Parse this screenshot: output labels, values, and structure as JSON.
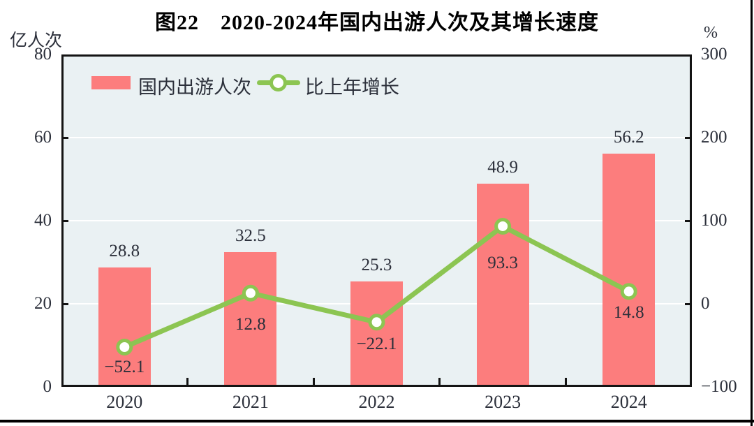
{
  "figure": {
    "title": "图22　2020-2024年国内出游人次及其增长速度",
    "left_axis": {
      "unit": "亿人次",
      "tick_values": [
        0,
        20,
        40,
        60,
        80
      ],
      "tick_labels": [
        "0",
        "20",
        "40",
        "60",
        "80"
      ]
    },
    "right_axis": {
      "unit": "%",
      "tick_values": [
        -100,
        0,
        100,
        200,
        300
      ],
      "tick_labels": [
        "−100",
        "0",
        "100",
        "200",
        "300"
      ]
    },
    "legend": [
      {
        "label": "国内出游人次",
        "swatch": "bar"
      },
      {
        "label": "比上年增长",
        "swatch": "line-marker"
      }
    ],
    "colors": {
      "bar": "#FC7D7D",
      "line": "#8CC552",
      "marker_fill": "#FFFFFF",
      "plot_background": "#EAF1F3",
      "gridline": "#FFFFFF",
      "axis_frame": "#141414",
      "text": "#2B2F3A",
      "title_text": "#000000"
    }
  },
  "chart_data": {
    "type": "combo-bar-line",
    "title": "图22　2020-2024年国内出游人次及其增长速度",
    "categories": [
      "2020",
      "2021",
      "2022",
      "2023",
      "2024"
    ],
    "series": [
      {
        "name": "国内出游人次",
        "type": "bar",
        "axis": "left",
        "unit": "亿人次",
        "values": [
          28.8,
          32.5,
          25.3,
          48.9,
          56.2
        ],
        "value_labels": [
          "28.8",
          "32.5",
          "25.3",
          "48.9",
          "56.2"
        ]
      },
      {
        "name": "比上年增长",
        "type": "line",
        "axis": "right",
        "unit": "%",
        "values": [
          -52.1,
          12.8,
          -22.1,
          93.3,
          14.8
        ],
        "value_labels": [
          "−52.1",
          "12.8",
          "−22.1",
          "93.3",
          "14.8"
        ]
      }
    ],
    "xlabel": "",
    "ylabel_left": "亿人次",
    "ylabel_right": "%",
    "ylim_left": [
      0,
      80
    ],
    "ylim_right": [
      -100,
      300
    ],
    "grid": true,
    "legend_position": "top-left-inside"
  }
}
